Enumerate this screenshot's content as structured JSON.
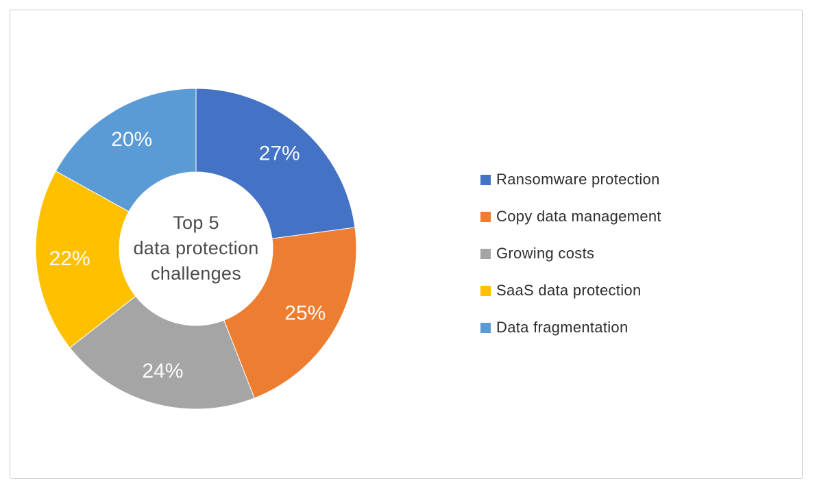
{
  "chart_data": {
    "type": "pie",
    "variant": "donut",
    "title": "Top 5 data protection challenges",
    "center_lines": [
      "Top 5",
      "data protection",
      "challenges"
    ],
    "start_angle_deg": 0,
    "direction": "clockwise",
    "legend_position": "right",
    "label_color": "#ffffff",
    "center_text_color": "#4b4b4b",
    "slices": [
      {
        "label": "Ransomware protection",
        "value": 27,
        "percent_label": "27%",
        "color": "#4472C4"
      },
      {
        "label": "Copy data management",
        "value": 25,
        "percent_label": "25%",
        "color": "#ED7D31"
      },
      {
        "label": "Growing costs",
        "value": 24,
        "percent_label": "24%",
        "color": "#A5A5A5"
      },
      {
        "label": "SaaS data protection",
        "value": 22,
        "percent_label": "22%",
        "color": "#FFC000"
      },
      {
        "label": "Data fragmentation",
        "value": 20,
        "percent_label": "20%",
        "color": "#5B9BD5"
      }
    ]
  }
}
